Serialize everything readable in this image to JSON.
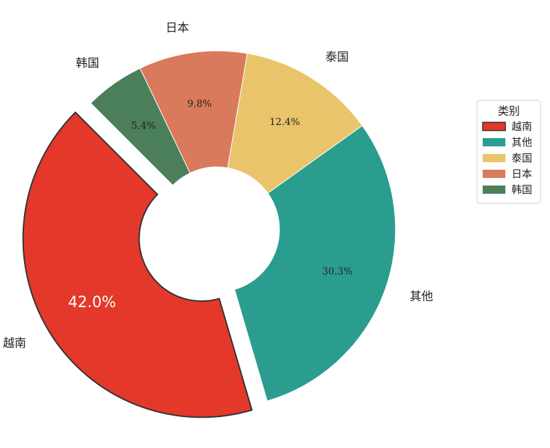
{
  "chart_data": {
    "type": "pie",
    "donut": true,
    "categories": [
      "越南",
      "其他",
      "泰国",
      "日本",
      "韩国"
    ],
    "values": [
      42.0,
      30.3,
      12.4,
      9.8,
      5.4
    ],
    "percent_labels": [
      "42.0%",
      "30.3%",
      "12.4%",
      "9.8%",
      "5.4%"
    ],
    "colors": [
      "#e3382a",
      "#2a9d8f",
      "#e9c46a",
      "#d97a5c",
      "#4b7f5a"
    ],
    "exploded": [
      true,
      false,
      false,
      false,
      false
    ],
    "legend": {
      "title": "类别",
      "placement": "right",
      "entries": [
        "越南",
        "其他",
        "泰国",
        "日本",
        "韩国"
      ]
    }
  }
}
